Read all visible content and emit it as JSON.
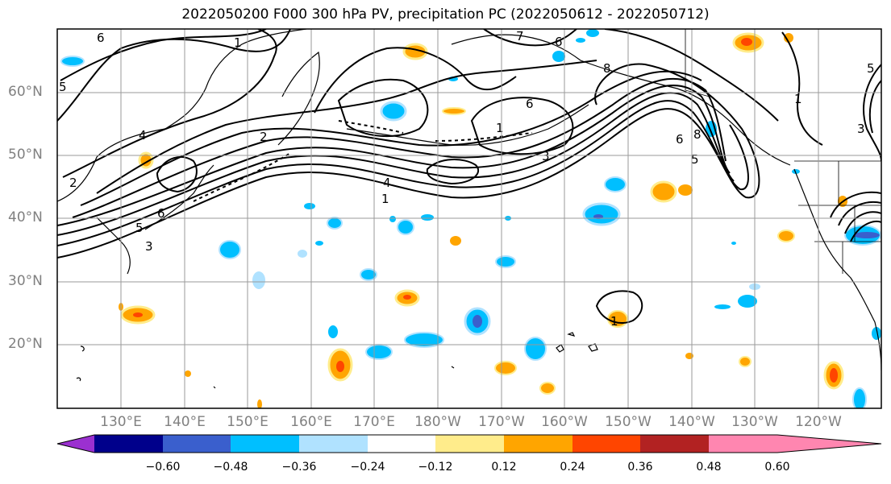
{
  "title": "2022050200 F000 300 hPa PV, precipitation PC (2022050612 - 2022050712)",
  "map": {
    "lat_labels": [
      "60°N",
      "50°N",
      "40°N",
      "30°N",
      "20°N"
    ],
    "lon_labels": [
      "130°E",
      "140°E",
      "150°E",
      "160°E",
      "170°E",
      "180°W",
      "170°W",
      "160°W",
      "150°W",
      "140°W",
      "130°W",
      "120°W"
    ],
    "pv_contour_labels": [
      "1",
      "2",
      "3",
      "4",
      "5",
      "6",
      "7",
      "8"
    ]
  },
  "colorbar": {
    "ticks": [
      "−0.60",
      "−0.48",
      "−0.36",
      "−0.24",
      "−0.12",
      "0.12",
      "0.24",
      "0.36",
      "0.48",
      "0.60"
    ],
    "colors": [
      "#9b30d0",
      "#00008b",
      "#3a5fcd",
      "#00bfff",
      "#b0e2ff",
      "#ffffff",
      "#ffec8b",
      "#ffa500",
      "#ff4500",
      "#b22222",
      "#ff86b0"
    ]
  }
}
